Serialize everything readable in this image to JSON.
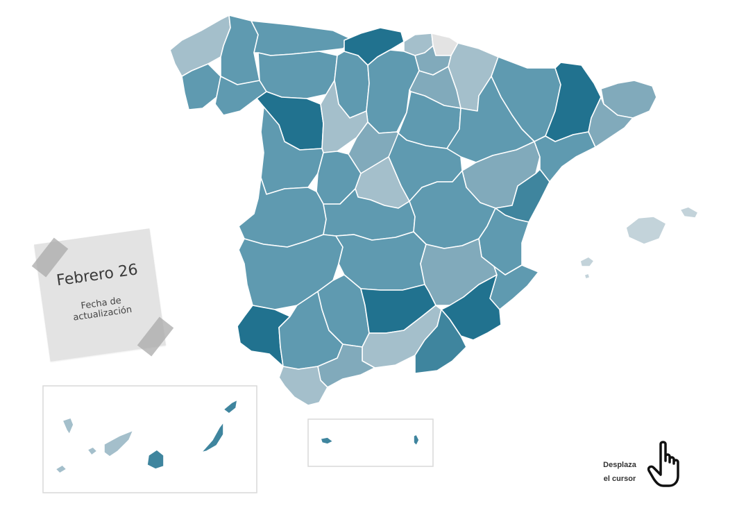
{
  "update_note": {
    "date": "Febrero 26",
    "caption_line1": "Fecha de",
    "caption_line2": "actualización"
  },
  "hint": {
    "line1": "Desplaza",
    "line2": "el cursor"
  },
  "colors": {
    "darkest": "#21728f",
    "dark": "#3f859e",
    "mid": "#5f9ab0",
    "light": "#81aabb",
    "lighter": "#a4bfcb",
    "lightest": "#c3d3da",
    "nodata": "#e3e3e3",
    "border": "#ffffff",
    "note_bg": "#e3e3e3"
  },
  "icons": {
    "hint": "pointing-hand-icon"
  }
}
